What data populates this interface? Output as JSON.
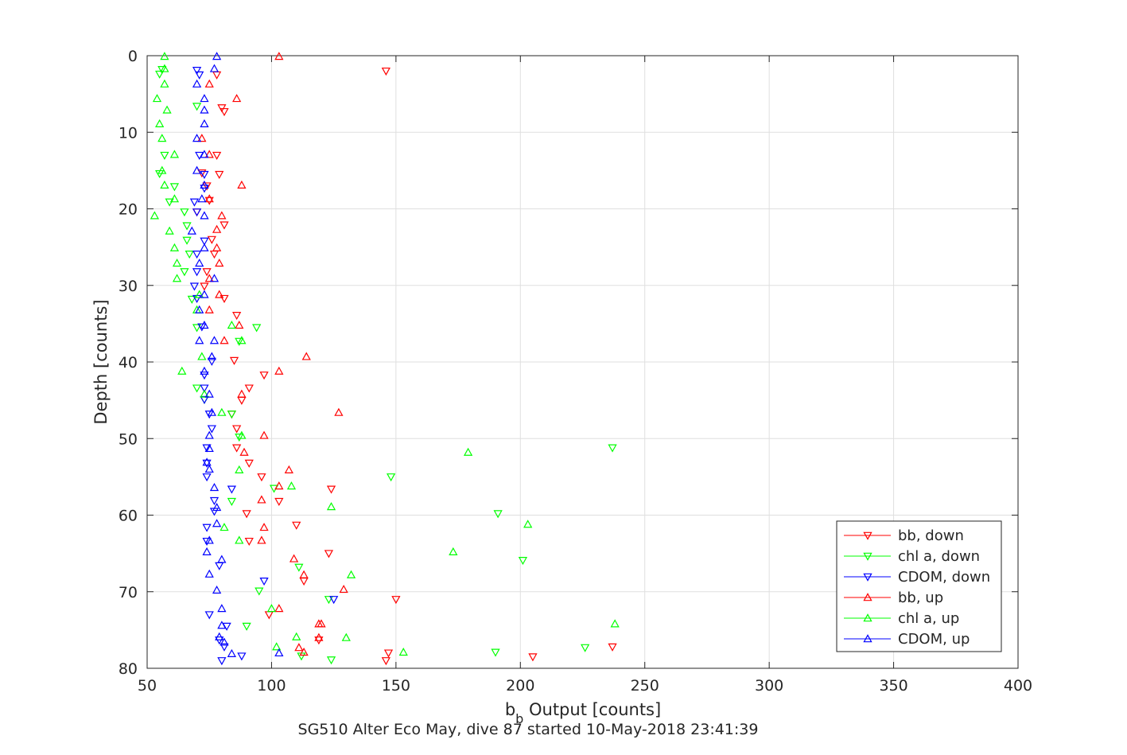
{
  "chart_data": {
    "type": "scatter",
    "xlabel_base": "b",
    "xlabel_sub": "b",
    "xlabel_rest": " Output [counts]",
    "ylabel": "Depth [counts]",
    "subtitle": "SG510 Alter Eco May, dive 87 started 10-May-2018 23:41:39",
    "xlim": [
      50,
      400
    ],
    "ylim": [
      0,
      80
    ],
    "y_reversed": true,
    "grid": true,
    "legend_position": "bottom-right",
    "x_ticks": [
      "50",
      "100",
      "150",
      "200",
      "250",
      "300",
      "350",
      "400"
    ],
    "y_ticks": [
      "0",
      "10",
      "20",
      "30",
      "40",
      "50",
      "60",
      "70",
      "80"
    ],
    "colors": {
      "bb": "#ff0000",
      "chl": "#00ff00",
      "cdom": "#0000ff"
    },
    "series": [
      {
        "name": "bb, down",
        "marker": "triangle-down",
        "color": "#ff0000",
        "points": [
          [
            146,
            2
          ],
          [
            78,
            2.5
          ],
          [
            80,
            6.8
          ],
          [
            81,
            7.3
          ],
          [
            78,
            13
          ],
          [
            72,
            15.3
          ],
          [
            79,
            15.5
          ],
          [
            74,
            17
          ],
          [
            75,
            18.9
          ],
          [
            70,
            20.4
          ],
          [
            81,
            22.1
          ],
          [
            76,
            24
          ],
          [
            77,
            25.9
          ],
          [
            74,
            28.2
          ],
          [
            73,
            30.1
          ],
          [
            81,
            31.7
          ],
          [
            86,
            33.9
          ],
          [
            85,
            39.8
          ],
          [
            97,
            41.7
          ],
          [
            91,
            43.4
          ],
          [
            88,
            45
          ],
          [
            84,
            46.8
          ],
          [
            86,
            48.7
          ],
          [
            86,
            51.2
          ],
          [
            91,
            53.2
          ],
          [
            96,
            55
          ],
          [
            103,
            58.2
          ],
          [
            90,
            59.8
          ],
          [
            110,
            61.3
          ],
          [
            91,
            63.4
          ],
          [
            99,
            73
          ],
          [
            146,
            79
          ],
          [
            124,
            56.6
          ],
          [
            123,
            65
          ],
          [
            113,
            68.6
          ],
          [
            150,
            71
          ],
          [
            119,
            76.3
          ],
          [
            147,
            78
          ],
          [
            205,
            78.5
          ],
          [
            237,
            77.2
          ]
        ]
      },
      {
        "name": "chl a, down",
        "marker": "triangle-down",
        "color": "#00ff00",
        "points": [
          [
            56,
            1.8
          ],
          [
            55,
            2.4
          ],
          [
            70,
            6.6
          ],
          [
            57,
            13
          ],
          [
            55,
            15.4
          ],
          [
            61,
            17.1
          ],
          [
            59,
            19.1
          ],
          [
            65,
            20.4
          ],
          [
            66,
            22.2
          ],
          [
            66,
            24.1
          ],
          [
            67,
            25.9
          ],
          [
            65,
            28.2
          ],
          [
            68,
            31.8
          ],
          [
            70,
            35.5
          ],
          [
            94,
            35.5
          ],
          [
            87,
            37.3
          ],
          [
            70,
            43.4
          ],
          [
            73,
            44.9
          ],
          [
            84,
            46.8
          ],
          [
            87,
            49.8
          ],
          [
            101,
            56.5
          ],
          [
            84,
            58.2
          ],
          [
            148,
            55
          ],
          [
            191,
            59.8
          ],
          [
            201,
            65.9
          ],
          [
            237,
            51.2
          ],
          [
            111,
            66.8
          ],
          [
            95,
            69.9
          ],
          [
            90,
            74.5
          ],
          [
            123,
            71
          ],
          [
            112,
            78.4
          ],
          [
            124,
            78.9
          ],
          [
            226,
            77.3
          ],
          [
            190,
            77.9
          ]
        ]
      },
      {
        "name": "CDOM, down",
        "marker": "triangle-down",
        "color": "#0000ff",
        "points": [
          [
            70,
            1.9
          ],
          [
            71,
            2.5
          ],
          [
            71,
            13
          ],
          [
            73,
            15.5
          ],
          [
            73,
            17.3
          ],
          [
            69,
            19.1
          ],
          [
            70,
            20.4
          ],
          [
            73,
            24.2
          ],
          [
            70,
            25.9
          ],
          [
            70,
            28.2
          ],
          [
            69,
            30.1
          ],
          [
            70,
            31.7
          ],
          [
            72,
            35.4
          ],
          [
            76,
            39.9
          ],
          [
            73,
            41.7
          ],
          [
            73,
            43.4
          ],
          [
            73,
            44.9
          ],
          [
            75,
            46.8
          ],
          [
            76,
            48.7
          ],
          [
            74,
            51.2
          ],
          [
            74,
            53.2
          ],
          [
            74,
            55
          ],
          [
            84,
            56.6
          ],
          [
            77,
            58.1
          ],
          [
            77,
            59.5
          ],
          [
            74,
            61.6
          ],
          [
            74,
            63.4
          ],
          [
            79,
            66.6
          ],
          [
            75,
            73
          ],
          [
            82,
            74.5
          ],
          [
            79,
            76.3
          ],
          [
            81,
            77.2
          ],
          [
            80,
            79
          ],
          [
            88,
            78.4
          ],
          [
            125,
            71
          ],
          [
            97,
            68.6
          ]
        ]
      },
      {
        "name": "bb, up",
        "marker": "triangle-up",
        "color": "#ff0000",
        "points": [
          [
            103,
            0.1
          ],
          [
            75,
            3.7
          ],
          [
            86,
            5.6
          ],
          [
            72,
            10.8
          ],
          [
            75,
            12.9
          ],
          [
            88,
            16.9
          ],
          [
            75,
            18.7
          ],
          [
            80,
            20.9
          ],
          [
            78,
            22.7
          ],
          [
            78,
            25.1
          ],
          [
            79,
            27.1
          ],
          [
            75,
            29.1
          ],
          [
            79,
            31.2
          ],
          [
            75,
            33.2
          ],
          [
            87,
            35.2
          ],
          [
            81,
            37.2
          ],
          [
            114,
            39.3
          ],
          [
            103,
            41.2
          ],
          [
            88,
            44.2
          ],
          [
            127,
            46.6
          ],
          [
            97,
            49.6
          ],
          [
            89,
            51.8
          ],
          [
            107,
            54.1
          ],
          [
            103,
            56.2
          ],
          [
            96,
            58
          ],
          [
            97,
            61.6
          ],
          [
            96,
            63.3
          ],
          [
            109,
            65.7
          ],
          [
            113,
            67.8
          ],
          [
            129,
            69.7
          ],
          [
            103,
            72.2
          ],
          [
            119,
            74.2
          ],
          [
            120,
            74.2
          ],
          [
            119,
            76
          ],
          [
            113,
            77.9
          ],
          [
            111,
            77.3
          ]
        ]
      },
      {
        "name": "chl a, up",
        "marker": "triangle-up",
        "color": "#00ff00",
        "points": [
          [
            57,
            0.1
          ],
          [
            57,
            1.7
          ],
          [
            57,
            3.7
          ],
          [
            54,
            5.6
          ],
          [
            58,
            7.1
          ],
          [
            55,
            8.9
          ],
          [
            56,
            10.8
          ],
          [
            61,
            12.9
          ],
          [
            56,
            15
          ],
          [
            57,
            16.9
          ],
          [
            61,
            18.7
          ],
          [
            53,
            20.9
          ],
          [
            59,
            22.9
          ],
          [
            61,
            25.1
          ],
          [
            62,
            27.1
          ],
          [
            62,
            29.1
          ],
          [
            71,
            31.2
          ],
          [
            70,
            33.2
          ],
          [
            84,
            35.2
          ],
          [
            88,
            37.2
          ],
          [
            72,
            39.3
          ],
          [
            64,
            41.2
          ],
          [
            73,
            44.2
          ],
          [
            80,
            46.6
          ],
          [
            88,
            49.6
          ],
          [
            179,
            51.8
          ],
          [
            87,
            54.1
          ],
          [
            108,
            56.2
          ],
          [
            124,
            58.9
          ],
          [
            203,
            61.2
          ],
          [
            81,
            61.6
          ],
          [
            87,
            63.3
          ],
          [
            173,
            64.8
          ],
          [
            132,
            67.8
          ],
          [
            100,
            72.2
          ],
          [
            238,
            74.2
          ],
          [
            130,
            76
          ],
          [
            110,
            75.9
          ],
          [
            102,
            77.2
          ],
          [
            153,
            77.9
          ]
        ]
      },
      {
        "name": "CDOM, up",
        "marker": "triangle-up",
        "color": "#0000ff",
        "points": [
          [
            78,
            0.1
          ],
          [
            77,
            1.7
          ],
          [
            70,
            3.7
          ],
          [
            73,
            5.6
          ],
          [
            73,
            7.1
          ],
          [
            73,
            8.9
          ],
          [
            70,
            10.8
          ],
          [
            73,
            12.9
          ],
          [
            70,
            15
          ],
          [
            73,
            16.9
          ],
          [
            72,
            18.7
          ],
          [
            73,
            20.9
          ],
          [
            68,
            22.9
          ],
          [
            73,
            25.1
          ],
          [
            71,
            27.1
          ],
          [
            77,
            29.1
          ],
          [
            73,
            31.2
          ],
          [
            71,
            33.2
          ],
          [
            73,
            35.2
          ],
          [
            77,
            37.2
          ],
          [
            71,
            37.2
          ],
          [
            76,
            39.3
          ],
          [
            73,
            41.2
          ],
          [
            75,
            44.2
          ],
          [
            76,
            46.6
          ],
          [
            75,
            49.6
          ],
          [
            75,
            51.3
          ],
          [
            74,
            53.1
          ],
          [
            75,
            54
          ],
          [
            77,
            56.4
          ],
          [
            78,
            59
          ],
          [
            78,
            61.1
          ],
          [
            75,
            63.3
          ],
          [
            74,
            64.8
          ],
          [
            80,
            65.8
          ],
          [
            75,
            67.7
          ],
          [
            78,
            69.8
          ],
          [
            80,
            72.2
          ],
          [
            80,
            74.4
          ],
          [
            79,
            75.9
          ],
          [
            84,
            78.1
          ],
          [
            103,
            78
          ],
          [
            81,
            76.6
          ]
        ]
      }
    ]
  }
}
